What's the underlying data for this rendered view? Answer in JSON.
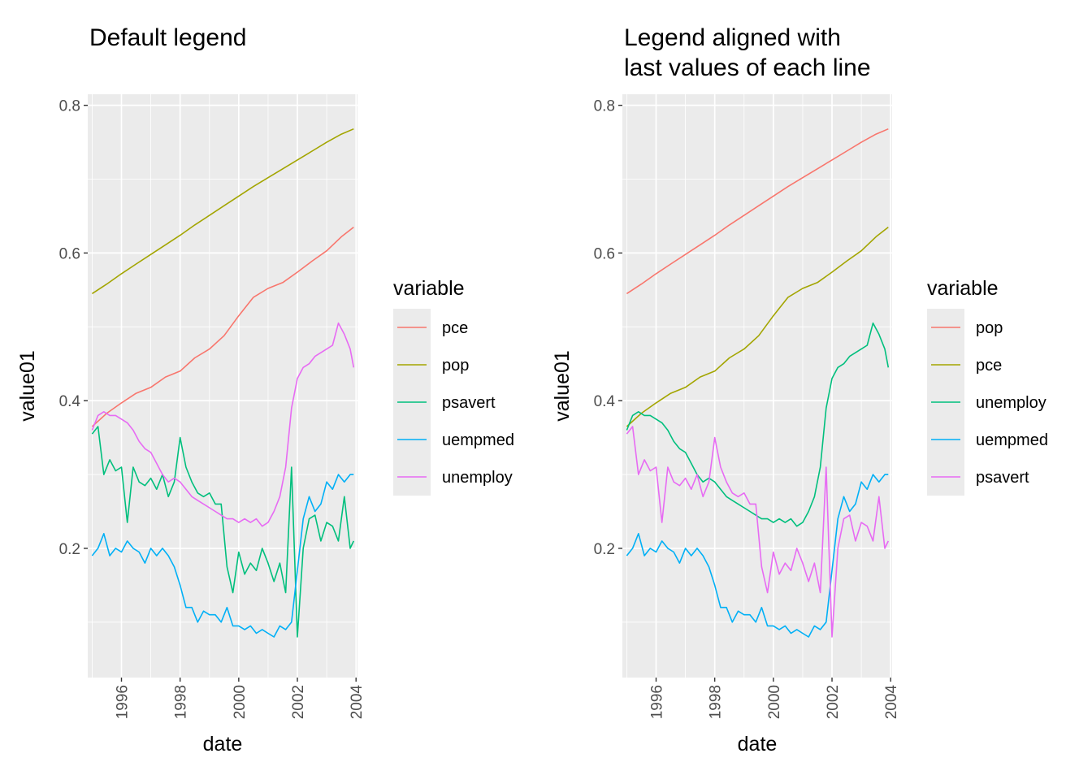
{
  "chart_data": [
    {
      "type": "line",
      "title": "Default legend",
      "xlabel": "date",
      "ylabel": "value01",
      "xlim": [
        1994.85,
        2004.05
      ],
      "ylim": [
        0.025,
        0.815
      ],
      "x_ticks": [
        "1996",
        "1998",
        "2000",
        "2002",
        "2004"
      ],
      "y_ticks": [
        "0.2",
        "0.4",
        "0.6",
        "0.8"
      ],
      "grid": true,
      "legend": {
        "title": "variable",
        "position": "right",
        "entries": [
          "pce",
          "pop",
          "psavert",
          "uempmed",
          "unemploy"
        ]
      },
      "series": [
        {
          "name": "pce",
          "color": "#F8766D",
          "x": [
            1995.0,
            1995.5,
            1996.0,
            1996.5,
            1997.0,
            1997.5,
            1998.0,
            1998.5,
            1999.0,
            1999.5,
            2000.0,
            2000.5,
            2001.0,
            2001.5,
            2002.0,
            2002.5,
            2003.0,
            2003.5,
            2003.92
          ],
          "y": [
            0.365,
            0.383,
            0.397,
            0.41,
            0.418,
            0.432,
            0.44,
            0.458,
            0.47,
            0.488,
            0.515,
            0.54,
            0.552,
            0.56,
            0.574,
            0.589,
            0.603,
            0.622,
            0.635
          ]
        },
        {
          "name": "pop",
          "color": "#A3A500",
          "x": [
            1995.0,
            1995.5,
            1996.0,
            1996.5,
            1997.0,
            1997.5,
            1998.0,
            1998.5,
            1999.0,
            1999.5,
            2000.0,
            2000.5,
            2001.0,
            2001.5,
            2002.0,
            2002.5,
            2003.0,
            2003.5,
            2003.92
          ],
          "y": [
            0.545,
            0.558,
            0.572,
            0.585,
            0.598,
            0.611,
            0.624,
            0.638,
            0.651,
            0.664,
            0.677,
            0.69,
            0.702,
            0.714,
            0.726,
            0.738,
            0.75,
            0.761,
            0.768
          ]
        },
        {
          "name": "psavert",
          "color": "#00BF7D",
          "x": [
            1995.0,
            1995.2,
            1995.4,
            1995.6,
            1995.8,
            1996.0,
            1996.2,
            1996.4,
            1996.6,
            1996.8,
            1997.0,
            1997.2,
            1997.4,
            1997.6,
            1997.8,
            1998.0,
            1998.2,
            1998.4,
            1998.6,
            1998.8,
            1999.0,
            1999.2,
            1999.4,
            1999.6,
            1999.8,
            2000.0,
            2000.2,
            2000.4,
            2000.6,
            2000.8,
            2001.0,
            2001.2,
            2001.4,
            2001.6,
            2001.8,
            2002.0,
            2002.2,
            2002.4,
            2002.6,
            2002.8,
            2003.0,
            2003.2,
            2003.4,
            2003.6,
            2003.8,
            2003.92
          ],
          "y": [
            0.355,
            0.365,
            0.3,
            0.32,
            0.305,
            0.31,
            0.235,
            0.31,
            0.29,
            0.285,
            0.295,
            0.28,
            0.3,
            0.27,
            0.29,
            0.35,
            0.31,
            0.29,
            0.275,
            0.27,
            0.275,
            0.26,
            0.26,
            0.175,
            0.14,
            0.195,
            0.165,
            0.18,
            0.17,
            0.2,
            0.18,
            0.155,
            0.18,
            0.14,
            0.31,
            0.08,
            0.2,
            0.24,
            0.245,
            0.21,
            0.235,
            0.23,
            0.21,
            0.27,
            0.2,
            0.21
          ]
        },
        {
          "name": "uempmed",
          "color": "#00B0F6",
          "x": [
            1995.0,
            1995.2,
            1995.4,
            1995.6,
            1995.8,
            1996.0,
            1996.2,
            1996.4,
            1996.6,
            1996.8,
            1997.0,
            1997.2,
            1997.4,
            1997.6,
            1997.8,
            1998.0,
            1998.2,
            1998.4,
            1998.6,
            1998.8,
            1999.0,
            1999.2,
            1999.4,
            1999.6,
            1999.8,
            2000.0,
            2000.2,
            2000.4,
            2000.6,
            2000.8,
            2001.0,
            2001.2,
            2001.4,
            2001.6,
            2001.8,
            2002.0,
            2002.2,
            2002.4,
            2002.6,
            2002.8,
            2003.0,
            2003.2,
            2003.4,
            2003.6,
            2003.8,
            2003.92
          ],
          "y": [
            0.19,
            0.2,
            0.22,
            0.19,
            0.2,
            0.195,
            0.21,
            0.2,
            0.195,
            0.18,
            0.2,
            0.19,
            0.2,
            0.19,
            0.175,
            0.15,
            0.12,
            0.12,
            0.1,
            0.115,
            0.11,
            0.11,
            0.1,
            0.12,
            0.095,
            0.095,
            0.09,
            0.095,
            0.085,
            0.09,
            0.085,
            0.08,
            0.095,
            0.09,
            0.1,
            0.17,
            0.24,
            0.27,
            0.25,
            0.26,
            0.29,
            0.28,
            0.3,
            0.29,
            0.3,
            0.3
          ]
        },
        {
          "name": "unemploy",
          "color": "#E76BF3",
          "x": [
            1995.0,
            1995.2,
            1995.4,
            1995.6,
            1995.8,
            1996.0,
            1996.2,
            1996.4,
            1996.6,
            1996.8,
            1997.0,
            1997.2,
            1997.4,
            1997.6,
            1997.8,
            1998.0,
            1998.2,
            1998.4,
            1998.6,
            1998.8,
            1999.0,
            1999.2,
            1999.4,
            1999.6,
            1999.8,
            2000.0,
            2000.2,
            2000.4,
            2000.6,
            2000.8,
            2001.0,
            2001.2,
            2001.4,
            2001.6,
            2001.8,
            2002.0,
            2002.2,
            2002.4,
            2002.6,
            2002.8,
            2003.0,
            2003.2,
            2003.4,
            2003.6,
            2003.8,
            2003.92
          ],
          "y": [
            0.36,
            0.38,
            0.385,
            0.38,
            0.38,
            0.375,
            0.37,
            0.36,
            0.345,
            0.335,
            0.33,
            0.315,
            0.3,
            0.29,
            0.295,
            0.29,
            0.28,
            0.27,
            0.265,
            0.26,
            0.255,
            0.25,
            0.245,
            0.24,
            0.24,
            0.235,
            0.24,
            0.235,
            0.24,
            0.23,
            0.235,
            0.25,
            0.27,
            0.31,
            0.39,
            0.43,
            0.445,
            0.45,
            0.46,
            0.465,
            0.47,
            0.475,
            0.505,
            0.49,
            0.47,
            0.445
          ]
        }
      ]
    },
    {
      "type": "line",
      "title": "Legend aligned with\nlast values of each line",
      "xlabel": "date",
      "ylabel": "value01",
      "xlim": [
        1994.85,
        2004.05
      ],
      "ylim": [
        0.025,
        0.815
      ],
      "x_ticks": [
        "1996",
        "1998",
        "2000",
        "2002",
        "2004"
      ],
      "y_ticks": [
        "0.2",
        "0.4",
        "0.6",
        "0.8"
      ],
      "grid": true,
      "legend": {
        "title": "variable",
        "position": "right",
        "entries": [
          "pop",
          "pce",
          "unemploy",
          "uempmed",
          "psavert"
        ]
      },
      "series": [
        {
          "name": "pop",
          "color": "#F8766D",
          "x": [
            1995.0,
            1995.5,
            1996.0,
            1996.5,
            1997.0,
            1997.5,
            1998.0,
            1998.5,
            1999.0,
            1999.5,
            2000.0,
            2000.5,
            2001.0,
            2001.5,
            2002.0,
            2002.5,
            2003.0,
            2003.5,
            2003.92
          ],
          "y": [
            0.545,
            0.558,
            0.572,
            0.585,
            0.598,
            0.611,
            0.624,
            0.638,
            0.651,
            0.664,
            0.677,
            0.69,
            0.702,
            0.714,
            0.726,
            0.738,
            0.75,
            0.761,
            0.768
          ]
        },
        {
          "name": "pce",
          "color": "#A3A500",
          "x": [
            1995.0,
            1995.5,
            1996.0,
            1996.5,
            1997.0,
            1997.5,
            1998.0,
            1998.5,
            1999.0,
            1999.5,
            2000.0,
            2000.5,
            2001.0,
            2001.5,
            2002.0,
            2002.5,
            2003.0,
            2003.5,
            2003.92
          ],
          "y": [
            0.365,
            0.383,
            0.397,
            0.41,
            0.418,
            0.432,
            0.44,
            0.458,
            0.47,
            0.488,
            0.515,
            0.54,
            0.552,
            0.56,
            0.574,
            0.589,
            0.603,
            0.622,
            0.635
          ]
        },
        {
          "name": "unemploy",
          "color": "#00BF7D",
          "x": [
            1995.0,
            1995.2,
            1995.4,
            1995.6,
            1995.8,
            1996.0,
            1996.2,
            1996.4,
            1996.6,
            1996.8,
            1997.0,
            1997.2,
            1997.4,
            1997.6,
            1997.8,
            1998.0,
            1998.2,
            1998.4,
            1998.6,
            1998.8,
            1999.0,
            1999.2,
            1999.4,
            1999.6,
            1999.8,
            2000.0,
            2000.2,
            2000.4,
            2000.6,
            2000.8,
            2001.0,
            2001.2,
            2001.4,
            2001.6,
            2001.8,
            2002.0,
            2002.2,
            2002.4,
            2002.6,
            2002.8,
            2003.0,
            2003.2,
            2003.4,
            2003.6,
            2003.8,
            2003.92
          ],
          "y": [
            0.36,
            0.38,
            0.385,
            0.38,
            0.38,
            0.375,
            0.37,
            0.36,
            0.345,
            0.335,
            0.33,
            0.315,
            0.3,
            0.29,
            0.295,
            0.29,
            0.28,
            0.27,
            0.265,
            0.26,
            0.255,
            0.25,
            0.245,
            0.24,
            0.24,
            0.235,
            0.24,
            0.235,
            0.24,
            0.23,
            0.235,
            0.25,
            0.27,
            0.31,
            0.39,
            0.43,
            0.445,
            0.45,
            0.46,
            0.465,
            0.47,
            0.475,
            0.505,
            0.49,
            0.47,
            0.445
          ]
        },
        {
          "name": "uempmed",
          "color": "#00B0F6",
          "x": [
            1995.0,
            1995.2,
            1995.4,
            1995.6,
            1995.8,
            1996.0,
            1996.2,
            1996.4,
            1996.6,
            1996.8,
            1997.0,
            1997.2,
            1997.4,
            1997.6,
            1997.8,
            1998.0,
            1998.2,
            1998.4,
            1998.6,
            1998.8,
            1999.0,
            1999.2,
            1999.4,
            1999.6,
            1999.8,
            2000.0,
            2000.2,
            2000.4,
            2000.6,
            2000.8,
            2001.0,
            2001.2,
            2001.4,
            2001.6,
            2001.8,
            2002.0,
            2002.2,
            2002.4,
            2002.6,
            2002.8,
            2003.0,
            2003.2,
            2003.4,
            2003.6,
            2003.8,
            2003.92
          ],
          "y": [
            0.19,
            0.2,
            0.22,
            0.19,
            0.2,
            0.195,
            0.21,
            0.2,
            0.195,
            0.18,
            0.2,
            0.19,
            0.2,
            0.19,
            0.175,
            0.15,
            0.12,
            0.12,
            0.1,
            0.115,
            0.11,
            0.11,
            0.1,
            0.12,
            0.095,
            0.095,
            0.09,
            0.095,
            0.085,
            0.09,
            0.085,
            0.08,
            0.095,
            0.09,
            0.1,
            0.17,
            0.24,
            0.27,
            0.25,
            0.26,
            0.29,
            0.28,
            0.3,
            0.29,
            0.3,
            0.3
          ]
        },
        {
          "name": "psavert",
          "color": "#E76BF3",
          "x": [
            1995.0,
            1995.2,
            1995.4,
            1995.6,
            1995.8,
            1996.0,
            1996.2,
            1996.4,
            1996.6,
            1996.8,
            1997.0,
            1997.2,
            1997.4,
            1997.6,
            1997.8,
            1998.0,
            1998.2,
            1998.4,
            1998.6,
            1998.8,
            1999.0,
            1999.2,
            1999.4,
            1999.6,
            1999.8,
            2000.0,
            2000.2,
            2000.4,
            2000.6,
            2000.8,
            2001.0,
            2001.2,
            2001.4,
            2001.6,
            2001.8,
            2002.0,
            2002.2,
            2002.4,
            2002.6,
            2002.8,
            2003.0,
            2003.2,
            2003.4,
            2003.6,
            2003.8,
            2003.92
          ],
          "y": [
            0.355,
            0.365,
            0.3,
            0.32,
            0.305,
            0.31,
            0.235,
            0.31,
            0.29,
            0.285,
            0.295,
            0.28,
            0.3,
            0.27,
            0.29,
            0.35,
            0.31,
            0.29,
            0.275,
            0.27,
            0.275,
            0.26,
            0.26,
            0.175,
            0.14,
            0.195,
            0.165,
            0.18,
            0.17,
            0.2,
            0.18,
            0.155,
            0.18,
            0.14,
            0.31,
            0.08,
            0.2,
            0.24,
            0.245,
            0.21,
            0.235,
            0.23,
            0.21,
            0.27,
            0.2,
            0.21
          ]
        }
      ]
    }
  ]
}
